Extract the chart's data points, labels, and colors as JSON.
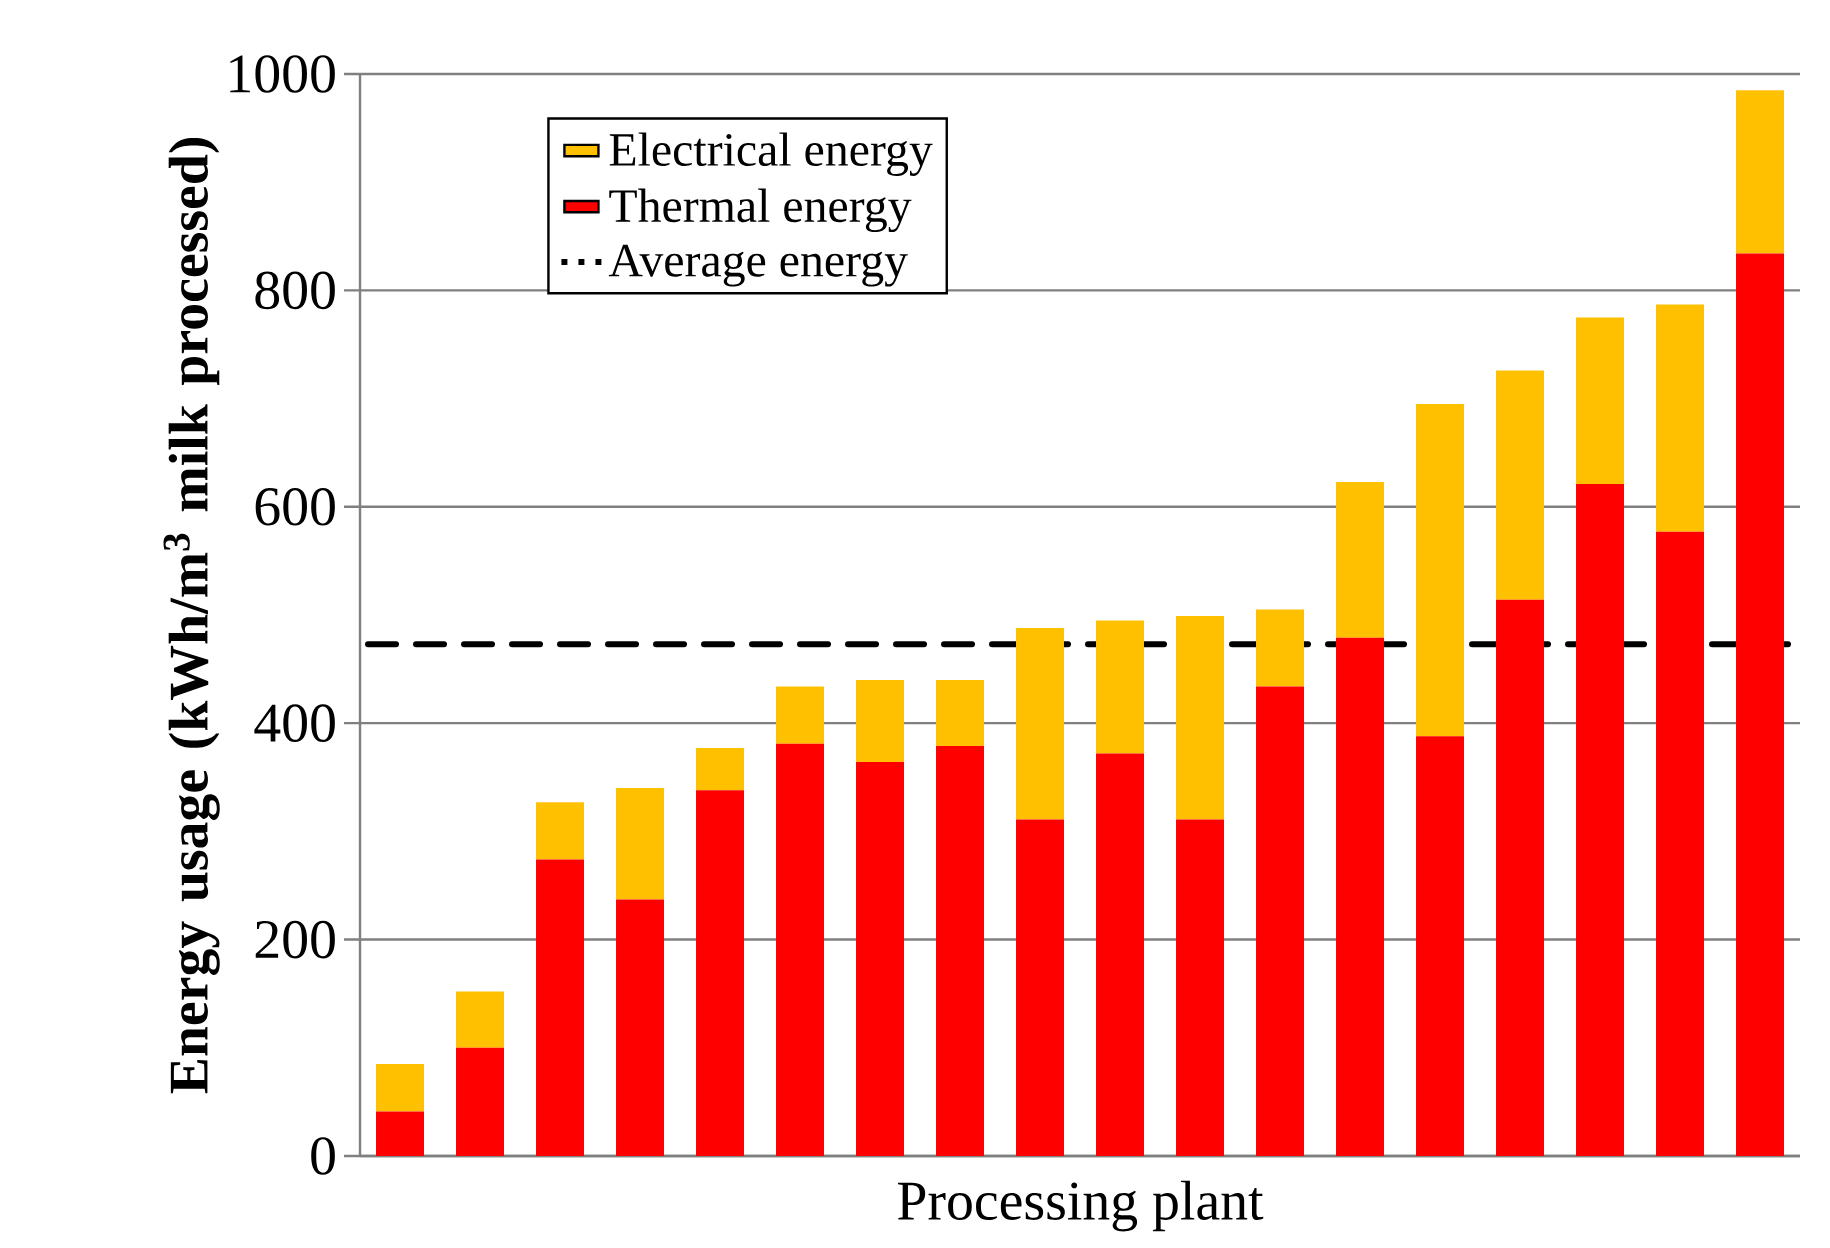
{
  "chart_data": {
    "type": "bar",
    "stacked": true,
    "xlabel": "Processing plant",
    "ylabel": "Energy usage (kWh/m$^{3}$ milk processed)",
    "categories": [
      null,
      null,
      null,
      null,
      null,
      null,
      null,
      null,
      null,
      null,
      null,
      null,
      null,
      null,
      null,
      null,
      null,
      null
    ],
    "series": [
      {
        "name": "Thermal energy",
        "color": "#ff0000",
        "values": [
          41,
          100,
          274,
          237,
          338,
          381,
          364,
          379,
          311,
          372,
          311,
          434,
          479,
          388,
          514,
          621,
          577,
          834
        ]
      },
      {
        "name": "Electrical energy",
        "color": "#ffc000",
        "values": [
          44,
          52,
          53,
          103,
          39,
          53,
          76,
          61,
          177,
          123,
          188,
          71,
          144,
          307,
          212,
          154,
          210,
          151
        ]
      }
    ],
    "ref_lines": [
      {
        "axis": "y",
        "value": 473,
        "label": "Average energy",
        "color": "#000000",
        "line_style": "dashed"
      }
    ],
    "ylim": [
      0,
      1000
    ],
    "yticks": [
      0,
      200,
      400,
      600,
      800,
      1000
    ],
    "grid": "y",
    "legend": "top left",
    "tick_labels": "y"
  }
}
